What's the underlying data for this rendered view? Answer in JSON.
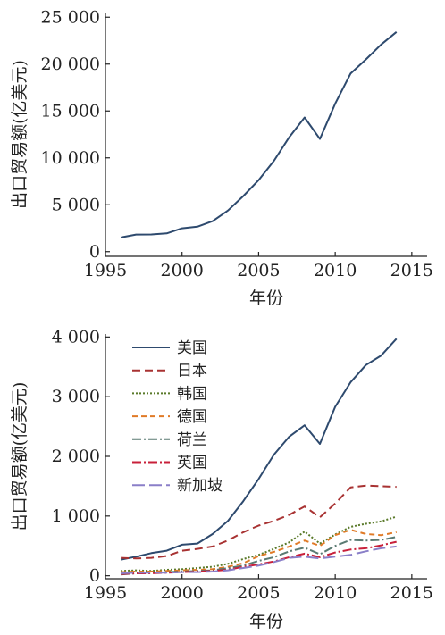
{
  "chart_data": [
    {
      "type": "line",
      "title": "",
      "xlabel": "年份",
      "ylabel": "出口贸易额(亿美元)",
      "xlim": [
        1995,
        2016
      ],
      "ylim": [
        -500,
        25500
      ],
      "xticks": [
        1995,
        2000,
        2005,
        2010,
        2015
      ],
      "yticks": [
        0,
        5000,
        10000,
        15000,
        20000,
        25000
      ],
      "ytick_labels": [
        "0",
        "5 000",
        "10 000",
        "15 000",
        "20 000",
        "25 000"
      ],
      "xtick_labels": [
        "1995",
        "2000",
        "2005",
        "2010",
        "2015"
      ],
      "grid": false,
      "x": [
        1996,
        1997,
        1998,
        1999,
        2000,
        2001,
        2002,
        2003,
        2004,
        2005,
        2006,
        2007,
        2008,
        2009,
        2010,
        2011,
        2012,
        2013,
        2014
      ],
      "series": [
        {
          "name": "",
          "color": "#2e4a6e",
          "dash": "",
          "values": [
            1510,
            1828,
            1837,
            1949,
            2492,
            2661,
            3256,
            4382,
            5933,
            7620,
            9689,
            12205,
            14307,
            12016,
            15778,
            18984,
            20487,
            22090,
            23423
          ]
        }
      ]
    },
    {
      "type": "line",
      "title": "",
      "xlabel": "年份",
      "ylabel": "出口贸易额(亿美元)",
      "xlim": [
        1995,
        2016
      ],
      "ylim": [
        -50,
        4050
      ],
      "xticks": [
        1995,
        2000,
        2005,
        2010,
        2015
      ],
      "yticks": [
        0,
        1000,
        2000,
        3000,
        4000
      ],
      "ytick_labels": [
        "0",
        "1 000",
        "2 000",
        "3 000",
        "4 000"
      ],
      "xtick_labels": [
        "1995",
        "2000",
        "2005",
        "2010",
        "2015"
      ],
      "grid": false,
      "legend": "top-left",
      "x": [
        1996,
        1997,
        1998,
        1999,
        2000,
        2001,
        2002,
        2003,
        2004,
        2005,
        2006,
        2007,
        2008,
        2009,
        2010,
        2011,
        2012,
        2013,
        2014
      ],
      "series": [
        {
          "name": "美国",
          "color": "#2e4a6e",
          "dash": "",
          "values": [
            270,
            320,
            380,
            420,
            520,
            540,
            700,
            920,
            1250,
            1620,
            2030,
            2330,
            2520,
            2210,
            2830,
            3240,
            3530,
            3690,
            3970
          ]
        },
        {
          "name": "日本",
          "color": "#a83232",
          "dash": "9,5",
          "values": [
            300,
            290,
            300,
            330,
            420,
            450,
            490,
            590,
            730,
            840,
            920,
            1020,
            1160,
            980,
            1210,
            1480,
            1510,
            1500,
            1490
          ]
        },
        {
          "name": "韩国",
          "color": "#5a7a2a",
          "dash": "2,2",
          "values": [
            80,
            90,
            80,
            100,
            110,
            130,
            150,
            200,
            280,
            350,
            450,
            560,
            740,
            540,
            690,
            820,
            870,
            910,
            990
          ]
        },
        {
          "name": "德国",
          "color": "#e07a26",
          "dash": "6,4",
          "values": [
            60,
            70,
            70,
            80,
            90,
            100,
            110,
            150,
            210,
            330,
            400,
            490,
            590,
            500,
            680,
            770,
            700,
            680,
            730
          ]
        },
        {
          "name": "荷兰",
          "color": "#5a7a72",
          "dash": "10,3,2,3",
          "values": [
            20,
            40,
            50,
            60,
            70,
            80,
            90,
            130,
            170,
            250,
            310,
            410,
            470,
            360,
            500,
            600,
            590,
            600,
            650
          ]
        },
        {
          "name": "英国",
          "color": "#c8203a",
          "dash": "10,3,2,3",
          "values": [
            30,
            40,
            40,
            50,
            60,
            70,
            80,
            100,
            150,
            190,
            240,
            310,
            370,
            310,
            390,
            440,
            460,
            510,
            570
          ]
        },
        {
          "name": "新加坡",
          "color": "#8a7fc8",
          "dash": "14,5",
          "values": [
            40,
            50,
            50,
            50,
            60,
            60,
            70,
            90,
            130,
            170,
            230,
            300,
            320,
            290,
            320,
            350,
            410,
            460,
            490
          ]
        }
      ]
    }
  ]
}
